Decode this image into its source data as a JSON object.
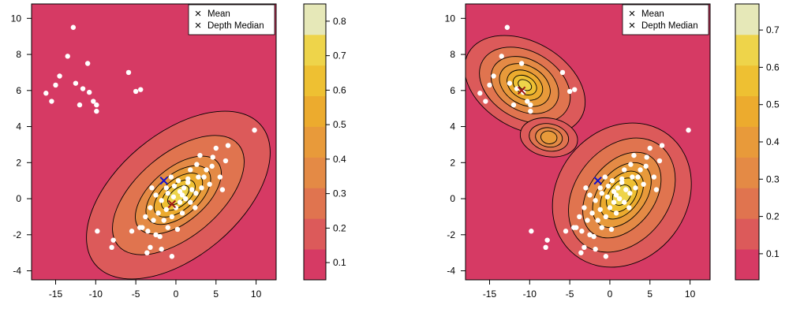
{
  "chart_data": [
    {
      "type": "contour",
      "title": "",
      "xlabel": "",
      "ylabel": "",
      "xlim": [
        -18,
        12.5
      ],
      "ylim": [
        -4.5,
        10.8
      ],
      "x_ticks": [
        -15,
        -10,
        -5,
        0,
        5,
        10
      ],
      "y_ticks": [
        -4,
        -2,
        0,
        2,
        4,
        6,
        8,
        10
      ],
      "legend": {
        "position": "top-right",
        "entries": [
          {
            "symbol": "×",
            "label": "Mean",
            "color": "#1010d0"
          },
          {
            "symbol": "×",
            "label": "Depth Median",
            "color": "#a01818"
          }
        ]
      },
      "markers": {
        "mean": {
          "x": -1.5,
          "y": 1.0
        },
        "depth_median": {
          "x": -0.5,
          "y": -0.3
        }
      },
      "colorbar": {
        "ticks": [
          0.1,
          0.2,
          0.3,
          0.4,
          0.5,
          0.6,
          0.7,
          0.8
        ],
        "range": [
          0.05,
          0.85
        ],
        "colors": [
          "#d63a64",
          "#dc5a5a",
          "#e0744f",
          "#e48a45",
          "#e89a3a",
          "#ecab2e",
          "#eec032",
          "#eed44a",
          "#e6e8b8"
        ]
      },
      "clusters": [
        {
          "cx": 0.3,
          "cy": 0.2,
          "angle": 40,
          "rx": [
            13.5,
            9.8,
            6.4,
            4.8,
            3.6,
            2.5,
            1.6
          ],
          "ry": [
            3.4,
            2.3,
            1.5,
            1.15,
            0.85,
            0.6,
            0.36
          ]
        }
      ],
      "points": [
        [
          -16.2,
          5.85
        ],
        [
          -15.5,
          5.4
        ],
        [
          -15.0,
          6.3
        ],
        [
          -14.5,
          6.8
        ],
        [
          -13.5,
          7.9
        ],
        [
          -12.8,
          9.5
        ],
        [
          -12.5,
          6.4
        ],
        [
          -12.0,
          5.2
        ],
        [
          -11.6,
          6.1
        ],
        [
          -11.0,
          7.5
        ],
        [
          -10.8,
          5.9
        ],
        [
          -10.3,
          5.4
        ],
        [
          -9.9,
          5.2
        ],
        [
          -9.9,
          4.85
        ],
        [
          -5.9,
          7.0
        ],
        [
          -5.0,
          5.95
        ],
        [
          -4.4,
          6.05
        ],
        [
          9.8,
          3.8
        ],
        [
          6.5,
          2.95
        ],
        [
          5.0,
          2.8
        ],
        [
          3.0,
          2.4
        ],
        [
          3.8,
          1.6
        ],
        [
          5.5,
          1.2
        ],
        [
          5.8,
          0.5
        ],
        [
          6.2,
          2.1
        ],
        [
          4.6,
          2.3
        ],
        [
          4.2,
          0.8
        ],
        [
          2.8,
          1.2
        ],
        [
          2.0,
          0.5
        ],
        [
          1.5,
          1.1
        ],
        [
          0.8,
          0.2
        ],
        [
          -0.2,
          0.7
        ],
        [
          -1.0,
          0.3
        ],
        [
          -1.8,
          -0.1
        ],
        [
          -2.5,
          0.2
        ],
        [
          -3.2,
          -0.5
        ],
        [
          -3.8,
          -1.0
        ],
        [
          -4.2,
          -1.6
        ],
        [
          -3.5,
          -1.8
        ],
        [
          -2.5,
          -2.0
        ],
        [
          -1.8,
          -2.8
        ],
        [
          -3.2,
          -2.7
        ],
        [
          -3.6,
          -3.0
        ],
        [
          -2.0,
          -2.1
        ],
        [
          0.2,
          -1.7
        ],
        [
          -0.5,
          -3.2
        ],
        [
          -5.5,
          -1.8
        ],
        [
          -7.8,
          -2.3
        ],
        [
          -8.0,
          -2.7
        ],
        [
          -9.8,
          -1.8
        ],
        [
          -0.5,
          -1.0
        ],
        [
          -1.2,
          -0.6
        ],
        [
          0.0,
          -0.5
        ],
        [
          0.5,
          -0.2
        ],
        [
          1.2,
          0.0
        ],
        [
          1.8,
          -0.2
        ],
        [
          2.5,
          0.3
        ],
        [
          3.2,
          0.6
        ],
        [
          3.5,
          1.2
        ],
        [
          1.0,
          0.6
        ],
        [
          0.3,
          1.0
        ],
        [
          -0.6,
          1.2
        ],
        [
          -1.5,
          -1.2
        ],
        [
          -2.2,
          -0.8
        ],
        [
          -2.8,
          -1.2
        ],
        [
          -1.0,
          -1.6
        ],
        [
          0.8,
          -0.8
        ],
        [
          1.5,
          0.9
        ],
        [
          2.4,
          -0.5
        ],
        [
          4.5,
          1.8
        ],
        [
          -4.5,
          -1.6
        ],
        [
          -3.0,
          0.6
        ],
        [
          0.5,
          0.4
        ],
        [
          -0.3,
          0.1
        ],
        [
          -1.2,
          0.6
        ],
        [
          1.8,
          1.6
        ],
        [
          2.6,
          1.9
        ]
      ]
    },
    {
      "type": "contour",
      "title": "",
      "xlabel": "",
      "ylabel": "",
      "xlim": [
        -18,
        12.5
      ],
      "ylim": [
        -4.5,
        10.8
      ],
      "x_ticks": [
        -15,
        -10,
        -5,
        0,
        5,
        10
      ],
      "y_ticks": [
        -4,
        -2,
        0,
        2,
        4,
        6,
        8,
        10
      ],
      "legend": {
        "position": "top-right",
        "entries": [
          {
            "symbol": "×",
            "label": "Mean",
            "color": "#1010d0"
          },
          {
            "symbol": "×",
            "label": "Depth Median",
            "color": "#a01818"
          }
        ]
      },
      "markers": {
        "mean": {
          "x": -1.5,
          "y": 1.0
        },
        "depth_median": {
          "x": -11.0,
          "y": 6.0
        }
      },
      "colorbar": {
        "ticks": [
          0.1,
          0.2,
          0.3,
          0.4,
          0.5,
          0.6,
          0.7
        ],
        "range": [
          0.03,
          0.77
        ],
        "colors": [
          "#d63a64",
          "#dc5a5a",
          "#e0744f",
          "#e48a45",
          "#e89a3a",
          "#ecab2e",
          "#eec032",
          "#eed44a",
          "#e6e8b8"
        ]
      },
      "clusters": [
        {
          "cx": 1.5,
          "cy": 0.2,
          "angle": 52,
          "rx": [
            9.5,
            7.8,
            6.0,
            4.6,
            3.4,
            2.4,
            1.4
          ],
          "ry": [
            3.6,
            2.6,
            1.8,
            1.3,
            0.95,
            0.7,
            0.45
          ]
        },
        {
          "cx": -10.6,
          "cy": 6.3,
          "angle": 60,
          "rx": [
            5.4,
            4.2,
            3.2,
            2.4,
            1.7,
            1.1,
            0.6
          ],
          "ry": [
            3.6,
            2.7,
            2.0,
            1.5,
            1.05,
            0.7,
            0.4
          ]
        },
        {
          "cx": -7.6,
          "cy": 3.4,
          "angle": 80,
          "rx": [
            2.4,
            1.7,
            1.2,
            0.8
          ],
          "ry": [
            1.6,
            1.1,
            0.75,
            0.45
          ]
        }
      ],
      "points": [
        [
          -16.2,
          5.85
        ],
        [
          -15.5,
          5.4
        ],
        [
          -15.0,
          6.3
        ],
        [
          -14.5,
          6.8
        ],
        [
          -13.5,
          7.9
        ],
        [
          -12.8,
          9.5
        ],
        [
          -12.5,
          6.4
        ],
        [
          -12.0,
          5.2
        ],
        [
          -11.6,
          6.1
        ],
        [
          -11.0,
          7.5
        ],
        [
          -10.8,
          5.9
        ],
        [
          -10.3,
          5.4
        ],
        [
          -9.9,
          5.2
        ],
        [
          -9.9,
          4.85
        ],
        [
          -5.9,
          7.0
        ],
        [
          -5.0,
          5.95
        ],
        [
          -4.4,
          6.05
        ],
        [
          9.8,
          3.8
        ],
        [
          6.5,
          2.95
        ],
        [
          5.0,
          2.8
        ],
        [
          3.0,
          2.4
        ],
        [
          3.8,
          1.6
        ],
        [
          5.5,
          1.2
        ],
        [
          5.8,
          0.5
        ],
        [
          6.2,
          2.1
        ],
        [
          4.6,
          2.3
        ],
        [
          4.2,
          0.8
        ],
        [
          2.8,
          1.2
        ],
        [
          2.0,
          0.5
        ],
        [
          1.5,
          1.1
        ],
        [
          0.8,
          0.2
        ],
        [
          -0.2,
          0.7
        ],
        [
          -1.0,
          0.3
        ],
        [
          -1.8,
          -0.1
        ],
        [
          -2.5,
          0.2
        ],
        [
          -3.2,
          -0.5
        ],
        [
          -3.8,
          -1.0
        ],
        [
          -4.2,
          -1.6
        ],
        [
          -3.5,
          -1.8
        ],
        [
          -2.5,
          -2.0
        ],
        [
          -1.8,
          -2.8
        ],
        [
          -3.2,
          -2.7
        ],
        [
          -3.6,
          -3.0
        ],
        [
          -2.0,
          -2.1
        ],
        [
          0.2,
          -1.7
        ],
        [
          -0.5,
          -3.2
        ],
        [
          -5.5,
          -1.8
        ],
        [
          -7.8,
          -2.3
        ],
        [
          -8.0,
          -2.7
        ],
        [
          -9.8,
          -1.8
        ],
        [
          -0.5,
          -1.0
        ],
        [
          -1.2,
          -0.6
        ],
        [
          0.0,
          -0.5
        ],
        [
          0.5,
          -0.2
        ],
        [
          1.2,
          0.0
        ],
        [
          1.8,
          -0.2
        ],
        [
          2.5,
          0.3
        ],
        [
          3.2,
          0.6
        ],
        [
          3.5,
          1.2
        ],
        [
          1.0,
          0.6
        ],
        [
          0.3,
          1.0
        ],
        [
          -0.6,
          1.2
        ],
        [
          -1.5,
          -1.2
        ],
        [
          -2.2,
          -0.8
        ],
        [
          -2.8,
          -1.2
        ],
        [
          -1.0,
          -1.6
        ],
        [
          0.8,
          -0.8
        ],
        [
          1.5,
          0.9
        ],
        [
          2.4,
          -0.5
        ],
        [
          4.5,
          1.8
        ],
        [
          -4.5,
          -1.6
        ],
        [
          -3.0,
          0.6
        ],
        [
          0.5,
          0.4
        ],
        [
          -0.3,
          0.1
        ],
        [
          -1.2,
          0.6
        ],
        [
          1.8,
          1.6
        ],
        [
          2.6,
          1.9
        ]
      ]
    }
  ]
}
